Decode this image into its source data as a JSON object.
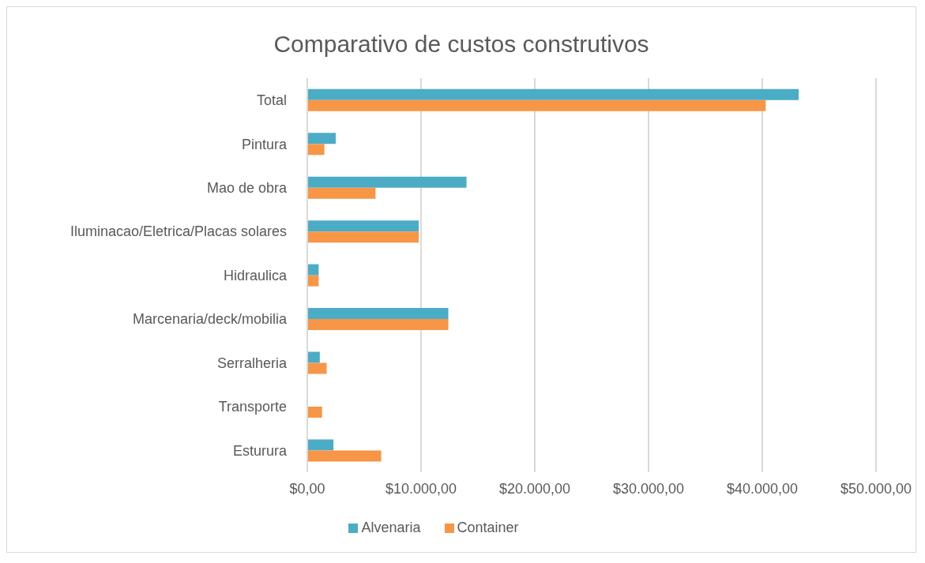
{
  "chart_data": {
    "type": "bar",
    "orientation": "horizontal",
    "title": "Comparativo de custos construtivos",
    "categories": [
      "Total",
      "Pintura",
      "Mao de obra",
      "Iluminacao/Eletrica/Placas solares",
      "Hidraulica",
      "Marcenaria/deck/mobilia",
      "Serralheria",
      "Transporte",
      "Esturura"
    ],
    "series": [
      {
        "name": "Alvenaria",
        "color": "#4bacc6",
        "values": [
          43200,
          2500,
          14000,
          9800,
          1000,
          12400,
          1100,
          0,
          2300
        ]
      },
      {
        "name": "Container",
        "color": "#f79646",
        "values": [
          40300,
          1500,
          6000,
          9800,
          1000,
          12400,
          1700,
          1300,
          6500
        ]
      }
    ],
    "xlim": [
      0,
      50000
    ],
    "xticks": [
      {
        "value": 0,
        "label": "$0,00"
      },
      {
        "value": 10000,
        "label": "$10.000,00"
      },
      {
        "value": 20000,
        "label": "$20.000,00"
      },
      {
        "value": 30000,
        "label": "$30.000,00"
      },
      {
        "value": 40000,
        "label": "$40.000,00"
      },
      {
        "value": 50000,
        "label": "$50.000,00"
      }
    ],
    "grid": "x",
    "legend": "bottom"
  }
}
